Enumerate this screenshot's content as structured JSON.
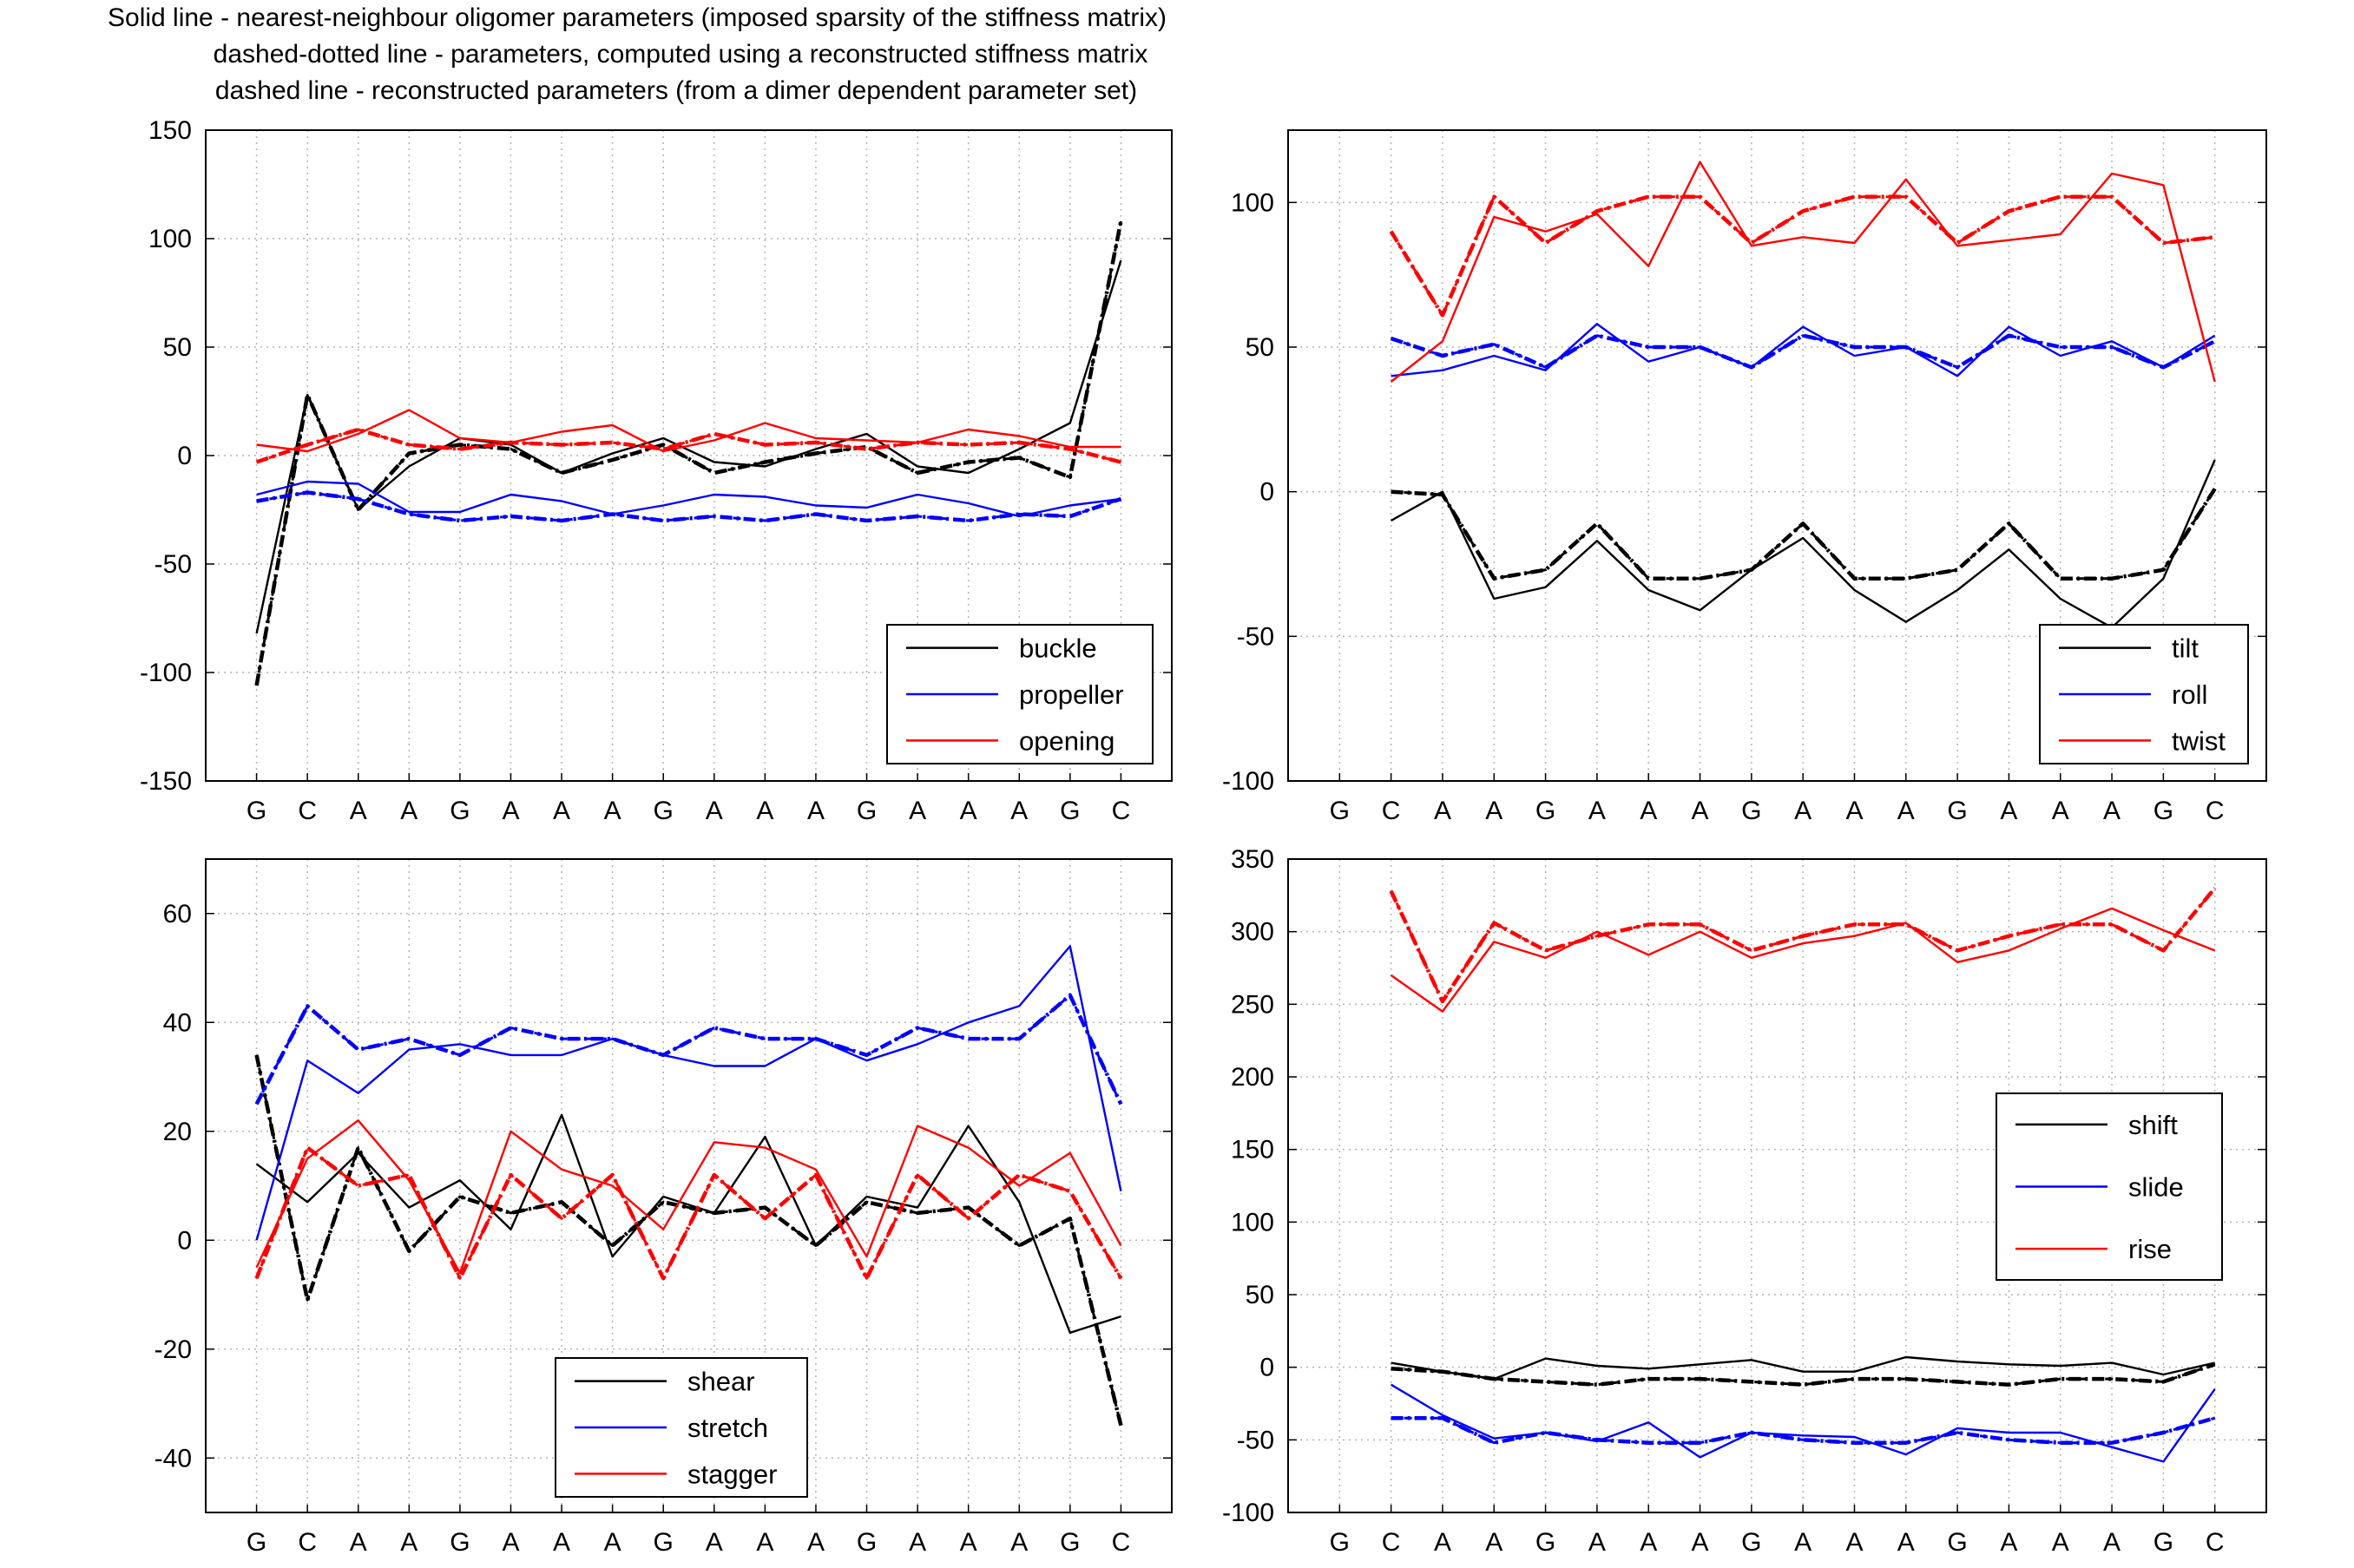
{
  "title_lines": [
    "Solid line - nearest-neighbour oligomer parameters (imposed sparsity of the stiffness matrix)",
    "dashed-dotted line - parameters, computed using a reconstructed stiffness matrix",
    "dashed line - reconstructed parameters (from a dimer dependent parameter set)"
  ],
  "colors": {
    "black": "#000000",
    "blue": "#0000ff",
    "red": "#ff0000",
    "grid": "#b4b4b4"
  },
  "chart_data": [
    {
      "type": "line",
      "grid": true,
      "legend_position": "bottom-right",
      "categories": [
        "G",
        "C",
        "A",
        "A",
        "G",
        "A",
        "A",
        "A",
        "G",
        "A",
        "A",
        "A",
        "G",
        "A",
        "A",
        "A",
        "G",
        "C"
      ],
      "ylim": [
        -150,
        150
      ],
      "yticks": [
        -150,
        -100,
        -50,
        0,
        50,
        100,
        150
      ],
      "series": [
        {
          "name": "buckle",
          "color": "black",
          "legend": true,
          "solid": [
            -82,
            28,
            -25,
            -5,
            8,
            5,
            -8,
            1,
            8,
            -3,
            -5,
            3,
            10,
            -5,
            -8,
            3,
            15,
            90
          ],
          "dashdot": [
            -106,
            28,
            -25,
            1,
            5,
            3,
            -8,
            -2,
            5,
            -8,
            -3,
            1,
            4,
            -8,
            -3,
            -1,
            -10,
            108
          ]
        },
        {
          "name": "propeller",
          "color": "blue",
          "legend": true,
          "solid": [
            -18,
            -12,
            -13,
            -26,
            -26,
            -18,
            -21,
            -27,
            -23,
            -18,
            -19,
            -23,
            -24,
            -18,
            -22,
            -28,
            -23,
            -20
          ],
          "dashdot": [
            -21,
            -17,
            -20,
            -27,
            -30,
            -28,
            -30,
            -27,
            -30,
            -28,
            -30,
            -27,
            -30,
            -28,
            -30,
            -27,
            -28,
            -20
          ]
        },
        {
          "name": "opening",
          "color": "red",
          "legend": true,
          "solid": [
            5,
            2,
            10,
            21,
            8,
            6,
            11,
            14,
            2,
            7,
            15,
            8,
            7,
            6,
            12,
            9,
            4,
            4
          ],
          "dashdot": [
            -3,
            5,
            12,
            5,
            3,
            6,
            5,
            6,
            3,
            10,
            5,
            6,
            3,
            6,
            5,
            6,
            3,
            -3
          ]
        }
      ]
    },
    {
      "type": "line",
      "grid": true,
      "legend_position": "bottom-right",
      "categories": [
        "G",
        "C",
        "A",
        "A",
        "G",
        "A",
        "A",
        "A",
        "G",
        "A",
        "A",
        "A",
        "G",
        "A",
        "A",
        "A",
        "G",
        "C"
      ],
      "ylim": [
        -100,
        125
      ],
      "yticks": [
        -100,
        -50,
        0,
        50,
        100
      ],
      "series": [
        {
          "name": "tilt",
          "color": "black",
          "legend": true,
          "solid": [
            -10,
            0,
            -37,
            -33,
            -17,
            -34,
            -41,
            -27,
            -16,
            -34,
            -45,
            -34,
            -20,
            -37,
            -47,
            -30,
            11
          ],
          "dashdot": [
            0,
            -1,
            -30,
            -27,
            -11,
            -30,
            -30,
            -27,
            -11,
            -30,
            -30,
            -27,
            -11,
            -30,
            -30,
            -27,
            1
          ]
        },
        {
          "name": "roll",
          "color": "blue",
          "legend": true,
          "solid": [
            40,
            42,
            47,
            42,
            58,
            45,
            50,
            43,
            57,
            47,
            50,
            40,
            57,
            47,
            52,
            43,
            54
          ],
          "dashdot": [
            53,
            47,
            51,
            43,
            54,
            50,
            50,
            43,
            54,
            50,
            50,
            43,
            54,
            50,
            50,
            43,
            52
          ]
        },
        {
          "name": "twist",
          "color": "red",
          "legend": true,
          "solid": [
            38,
            52,
            95,
            90,
            96,
            78,
            114,
            85,
            88,
            86,
            108,
            85,
            87,
            89,
            110,
            106,
            38
          ],
          "dashdot": [
            90,
            61,
            102,
            86,
            97,
            102,
            102,
            86,
            97,
            102,
            102,
            86,
            97,
            102,
            102,
            86,
            88
          ]
        }
      ]
    },
    {
      "type": "line",
      "grid": true,
      "legend_position": "bottom-center",
      "categories": [
        "G",
        "C",
        "A",
        "A",
        "G",
        "A",
        "A",
        "A",
        "G",
        "A",
        "A",
        "A",
        "G",
        "A",
        "A",
        "A",
        "G",
        "C"
      ],
      "ylim": [
        -50,
        70
      ],
      "yticks": [
        -40,
        -20,
        0,
        20,
        40,
        60
      ],
      "series": [
        {
          "name": "shear",
          "color": "black",
          "legend": true,
          "solid": [
            14,
            7,
            16,
            6,
            11,
            2,
            23,
            -3,
            8,
            5,
            19,
            -1,
            8,
            6,
            21,
            7,
            -17,
            -14
          ],
          "dashdot": [
            34,
            -11,
            17,
            -2,
            8,
            5,
            7,
            -1,
            7,
            5,
            6,
            -1,
            7,
            5,
            6,
            -1,
            4,
            -34
          ]
        },
        {
          "name": "stretch",
          "color": "blue",
          "legend": true,
          "solid": [
            0,
            33,
            27,
            35,
            36,
            34,
            34,
            37,
            34,
            32,
            32,
            37,
            33,
            36,
            40,
            43,
            54,
            9
          ],
          "dashdot": [
            25,
            43,
            35,
            37,
            34,
            39,
            37,
            37,
            34,
            39,
            37,
            37,
            34,
            39,
            37,
            37,
            45,
            25
          ]
        },
        {
          "name": "stagger",
          "color": "red",
          "legend": true,
          "solid": [
            -5,
            15,
            22,
            11,
            -6,
            20,
            13,
            10,
            2,
            18,
            17,
            13,
            -3,
            21,
            17,
            10,
            16,
            -1
          ],
          "dashdot": [
            -7,
            17,
            10,
            12,
            -7,
            12,
            4,
            12,
            -7,
            12,
            4,
            12,
            -7,
            12,
            4,
            12,
            9,
            -7
          ]
        }
      ]
    },
    {
      "type": "line",
      "grid": true,
      "legend_position": "center-right",
      "categories": [
        "G",
        "C",
        "A",
        "A",
        "G",
        "A",
        "A",
        "A",
        "G",
        "A",
        "A",
        "A",
        "G",
        "A",
        "A",
        "A",
        "G",
        "C"
      ],
      "ylim": [
        -100,
        350
      ],
      "yticks": [
        -100,
        -50,
        0,
        50,
        100,
        150,
        200,
        250,
        300,
        350
      ],
      "series": [
        {
          "name": "shift",
          "color": "black",
          "legend": true,
          "solid": [
            3,
            -3,
            -8,
            6,
            1,
            -1,
            2,
            5,
            -3,
            -3,
            7,
            4,
            2,
            1,
            3,
            -5,
            3
          ],
          "dashdot": [
            -1,
            -3,
            -8,
            -10,
            -12,
            -8,
            -8,
            -10,
            -12,
            -8,
            -8,
            -10,
            -12,
            -8,
            -8,
            -10,
            2
          ]
        },
        {
          "name": "slide",
          "color": "blue",
          "legend": true,
          "solid": [
            -12,
            -33,
            -49,
            -45,
            -51,
            -38,
            -62,
            -45,
            -47,
            -48,
            -60,
            -42,
            -45,
            -45,
            -55,
            -65,
            -15
          ],
          "dashdot": [
            -35,
            -35,
            -52,
            -45,
            -50,
            -52,
            -52,
            -45,
            -50,
            -52,
            -52,
            -45,
            -50,
            -52,
            -52,
            -45,
            -35
          ]
        },
        {
          "name": "rise",
          "color": "red",
          "legend": true,
          "solid": [
            270,
            245,
            293,
            282,
            300,
            284,
            300,
            282,
            292,
            297,
            306,
            279,
            287,
            302,
            316,
            301,
            287
          ],
          "dashdot": [
            328,
            252,
            306,
            287,
            297,
            305,
            305,
            287,
            297,
            305,
            305,
            287,
            297,
            305,
            305,
            287,
            330
          ]
        }
      ]
    }
  ]
}
